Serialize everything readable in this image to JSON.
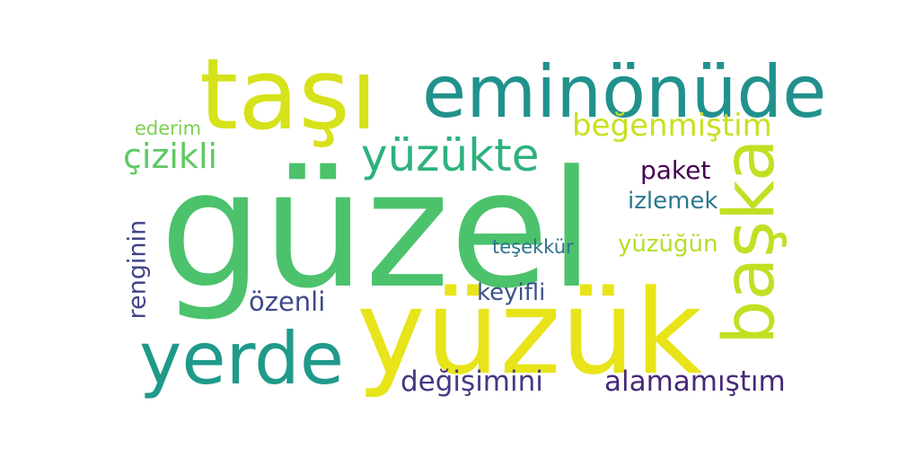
{
  "words": [
    {
      "id": "guzel",
      "text": "güzel",
      "color": "#4cc26c"
    },
    {
      "id": "yuzuk",
      "text": "yüzük",
      "color": "#e8e419"
    },
    {
      "id": "tasi",
      "text": "taşı",
      "color": "#d6e21a"
    },
    {
      "id": "eminonude",
      "text": "eminönüde",
      "color": "#21918c"
    },
    {
      "id": "baska",
      "text": "başka",
      "color": "#c2df23"
    },
    {
      "id": "yerde",
      "text": "yerde",
      "color": "#1f9a8a"
    },
    {
      "id": "yuzukte",
      "text": "yüzükte",
      "color": "#2db27d"
    },
    {
      "id": "begenmistim",
      "text": "beğenmiştim",
      "color": "#c8e020"
    },
    {
      "id": "cizikli",
      "text": "çizikli",
      "color": "#5ec962"
    },
    {
      "id": "paket",
      "text": "paket",
      "color": "#440154"
    },
    {
      "id": "izlemek",
      "text": "izlemek",
      "color": "#2a788e"
    },
    {
      "id": "ederim",
      "text": "ederim",
      "color": "#7ad151"
    },
    {
      "id": "renginin",
      "text": "renginin",
      "color": "#414487"
    },
    {
      "id": "tesekkur",
      "text": "teşekkür",
      "color": "#2c728e"
    },
    {
      "id": "yuzugun",
      "text": "yüzüğün",
      "color": "#b5de2b"
    },
    {
      "id": "keyifli",
      "text": "keyifli",
      "color": "#3b528b"
    },
    {
      "id": "ozenli",
      "text": "özenli",
      "color": "#3e4a89"
    },
    {
      "id": "degisimini",
      "text": "değişimini",
      "color": "#443983"
    },
    {
      "id": "alamamistim",
      "text": "alamamıştım",
      "color": "#482878"
    }
  ]
}
